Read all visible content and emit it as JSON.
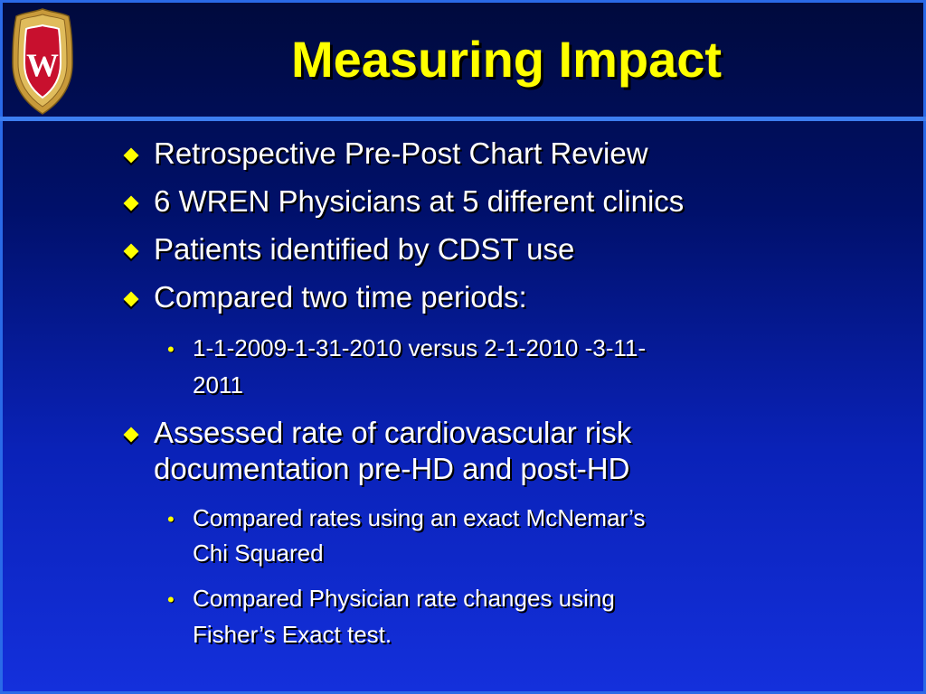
{
  "slide": {
    "title": "Measuring Impact",
    "logo": {
      "name": "university-crest-icon",
      "letter": "W"
    },
    "colors": {
      "title": "#ffff00",
      "text": "#ffffff",
      "bullet": "#ffff00",
      "rule": "#3d7ef0"
    },
    "bullets": [
      {
        "text": "Retrospective Pre-Post Chart Review"
      },
      {
        "text": "6 WREN Physicians at 5 different clinics"
      },
      {
        "text": "Patients identified by CDST use"
      },
      {
        "text": "Compared two time periods:",
        "sub": [
          {
            "line1": "1-1-2009-1-31-2010 versus 2-1-2010 -3-11-",
            "line2": "2011"
          }
        ]
      },
      {
        "line1": "Assessed rate of cardiovascular risk",
        "line2": "documentation pre-HD and post-HD",
        "sub": [
          {
            "line1": "Compared rates using an exact McNemar’s",
            "line2": "Chi Squared"
          },
          {
            "line1": "Compared Physician rate changes using",
            "line2": "Fisher’s Exact test."
          }
        ]
      }
    ]
  }
}
